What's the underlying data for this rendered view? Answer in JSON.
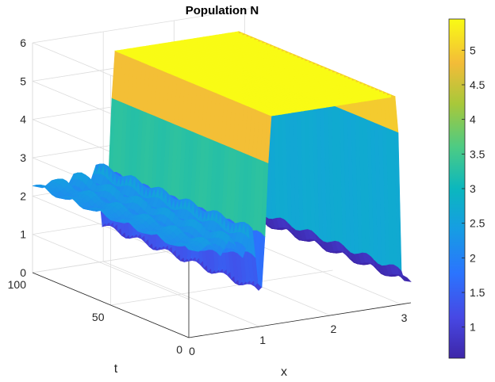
{
  "chart_data": {
    "type": "surface",
    "title": "Population N",
    "xlabel": "x",
    "ylabel": "t",
    "zlabel": "",
    "xlim": [
      0,
      3.14
    ],
    "ylim": [
      0,
      100
    ],
    "zlim": [
      0,
      6
    ],
    "x_ticks": [
      0,
      1,
      2,
      3
    ],
    "y_ticks": [
      0,
      50,
      100
    ],
    "z_ticks": [
      0,
      1,
      2,
      3,
      4,
      5,
      6
    ],
    "x_tick_labels": [
      "0",
      "1",
      "2",
      "3"
    ],
    "y_tick_labels": [
      "0",
      "50",
      "100"
    ],
    "z_tick_labels": [
      "0",
      "1",
      "2",
      "3",
      "4",
      "5",
      "6"
    ],
    "colorbar": {
      "colormap": "parula",
      "range": [
        0.55,
        5.45
      ],
      "ticks": [
        1,
        1.5,
        2,
        2.5,
        3,
        3.5,
        4,
        4.5,
        5
      ],
      "tick_labels": [
        "1",
        "1.5",
        "2",
        "2.5",
        "3",
        "3.5",
        "4",
        "4.5",
        "5"
      ]
    },
    "grid": true,
    "surface_profile": {
      "description_values": "N(x) along x at fixed t; nearly constant in t",
      "x": [
        0,
        0.15,
        0.3,
        0.45,
        0.6,
        0.75,
        0.9,
        1.0,
        1.05,
        1.15,
        1.3,
        1.5,
        1.8,
        2.1,
        2.4,
        2.7,
        2.95,
        3.0,
        3.05,
        3.14
      ],
      "z": [
        2.3,
        2.2,
        2.4,
        2.0,
        2.5,
        1.8,
        2.6,
        0.7,
        1.2,
        5.45,
        5.45,
        5.45,
        5.45,
        5.45,
        5.45,
        5.45,
        5.45,
        0.9,
        0.6,
        0.55
      ],
      "t_ripple_amplitude": 0.08
    }
  }
}
